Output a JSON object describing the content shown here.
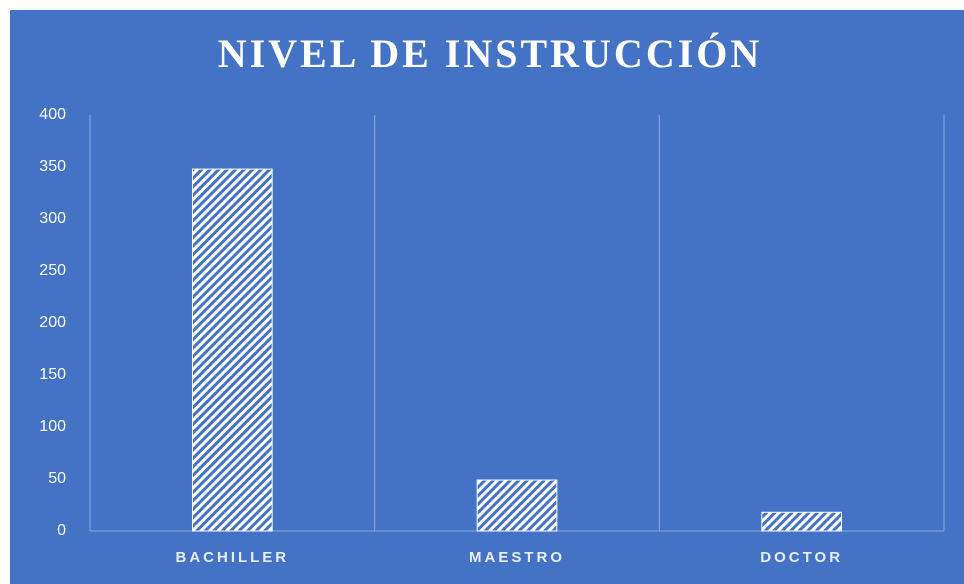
{
  "chart_data": {
    "type": "bar",
    "title": "NIVEL DE INSTRUCCIÓN",
    "categories": [
      "BACHILLER",
      "MAESTRO",
      "DOCTOR"
    ],
    "values": [
      348,
      49,
      18
    ],
    "color": "#ffffff",
    "ylim": [
      0,
      400
    ],
    "yticks": [
      0,
      50,
      100,
      150,
      200,
      250,
      300,
      350,
      400
    ],
    "grid": false
  }
}
